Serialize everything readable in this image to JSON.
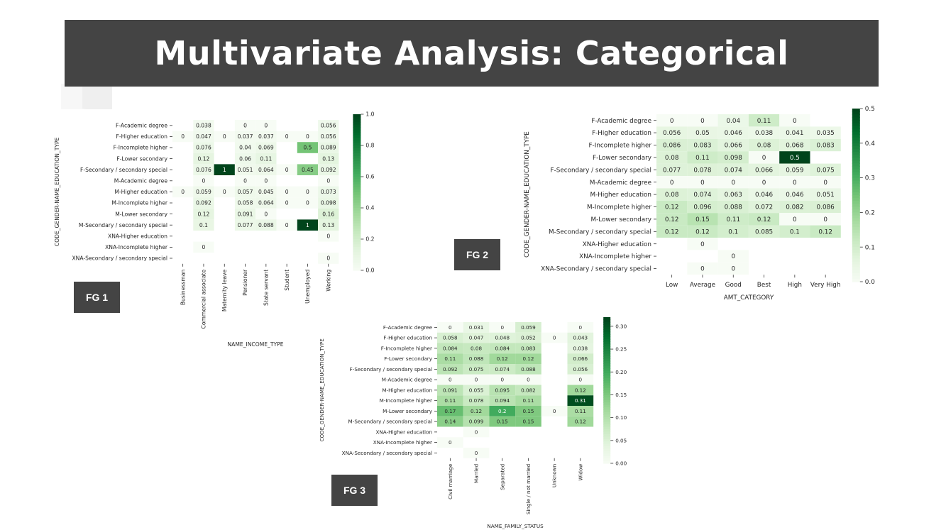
{
  "title": "Multivariate Analysis: Categorical",
  "figure_labels": [
    "FG 1",
    "FG 2",
    "FG 3"
  ],
  "colors": {
    "title_bg": "#444444",
    "cmap_light": "#f7fcf5",
    "cmap_dark": "#00441b"
  },
  "chart_data": [
    {
      "type": "heatmap",
      "ylabel": "CODE_GENDER-NAME_EDUCATION_TYPE",
      "xlabel": "NAME_INCOME_TYPE",
      "rows": [
        "F-Academic degree",
        "F-Higher education",
        "F-Incomplete higher",
        "F-Lower secondary",
        "F-Secondary / secondary special",
        "M-Academic degree",
        "M-Higher education",
        "M-Incomplete higher",
        "M-Lower secondary",
        "M-Secondary / secondary special",
        "XNA-Higher education",
        "XNA-Incomplete higher",
        "XNA-Secondary / secondary special"
      ],
      "columns": [
        "Businessman",
        "Commercial associate",
        "Maternity leave",
        "Pensioner",
        "State servant",
        "Student",
        "Unemployed",
        "Working"
      ],
      "values": [
        [
          null,
          "0.038",
          null,
          "0",
          "0",
          null,
          null,
          "0.056"
        ],
        [
          "0",
          "0.047",
          "0",
          "0.037",
          "0.037",
          "0",
          "0",
          "0.056"
        ],
        [
          null,
          "0.076",
          null,
          "0.04",
          "0.069",
          null,
          "0.5",
          "0.089"
        ],
        [
          null,
          "0.12",
          null,
          "0.06",
          "0.11",
          null,
          null,
          "0.13"
        ],
        [
          null,
          "0.076",
          "1",
          "0.051",
          "0.064",
          "0",
          "0.45",
          "0.092"
        ],
        [
          null,
          "0",
          null,
          "0",
          "0",
          null,
          null,
          "0"
        ],
        [
          "0",
          "0.059",
          "0",
          "0.057",
          "0.045",
          "0",
          "0",
          "0.073"
        ],
        [
          null,
          "0.092",
          null,
          "0.058",
          "0.064",
          "0",
          "0",
          "0.098"
        ],
        [
          null,
          "0.12",
          null,
          "0.091",
          "0",
          null,
          null,
          "0.16"
        ],
        [
          null,
          "0.1",
          null,
          "0.077",
          "0.088",
          "0",
          "1",
          "0.13"
        ],
        [
          null,
          null,
          null,
          null,
          null,
          null,
          null,
          "0"
        ],
        [
          null,
          "0",
          null,
          null,
          null,
          null,
          null,
          null
        ],
        [
          null,
          null,
          null,
          null,
          null,
          null,
          null,
          "0"
        ]
      ],
      "colorbar": {
        "min": 0,
        "max": 1.0,
        "ticks": [
          "0.0",
          "0.2",
          "0.4",
          "0.6",
          "0.8",
          "1.0"
        ]
      }
    },
    {
      "type": "heatmap",
      "ylabel": "CODE_GENDER-NAME_EDUCATION_TYPE",
      "xlabel": "AMT_CATEGORY",
      "rows": [
        "F-Academic degree",
        "F-Higher education",
        "F-Incomplete higher",
        "F-Lower secondary",
        "F-Secondary / secondary special",
        "M-Academic degree",
        "M-Higher education",
        "M-Incomplete higher",
        "M-Lower secondary",
        "M-Secondary / secondary special",
        "XNA-Higher education",
        "XNA-Incomplete higher",
        "XNA-Secondary / secondary special"
      ],
      "columns": [
        "Low",
        "Average",
        "Good",
        "Best",
        "High",
        "Very High"
      ],
      "values": [
        [
          "0",
          "0",
          "0.04",
          "0.11",
          "0",
          null
        ],
        [
          "0.056",
          "0.05",
          "0.046",
          "0.038",
          "0.041",
          "0.035"
        ],
        [
          "0.086",
          "0.083",
          "0.066",
          "0.08",
          "0.068",
          "0.083"
        ],
        [
          "0.08",
          "0.11",
          "0.098",
          "0",
          "0.5",
          null
        ],
        [
          "0.077",
          "0.078",
          "0.074",
          "0.066",
          "0.059",
          "0.075"
        ],
        [
          "0",
          "0",
          "0",
          "0",
          "0",
          "0"
        ],
        [
          "0.08",
          "0.074",
          "0.063",
          "0.046",
          "0.046",
          "0.051"
        ],
        [
          "0.12",
          "0.096",
          "0.088",
          "0.072",
          "0.082",
          "0.086"
        ],
        [
          "0.12",
          "0.15",
          "0.11",
          "0.12",
          "0",
          "0"
        ],
        [
          "0.12",
          "0.12",
          "0.1",
          "0.085",
          "0.1",
          "0.12"
        ],
        [
          null,
          "0",
          null,
          null,
          null,
          null
        ],
        [
          null,
          null,
          "0",
          null,
          null,
          null
        ],
        [
          null,
          "0",
          "0",
          null,
          null,
          null
        ]
      ],
      "colorbar": {
        "min": 0,
        "max": 0.5,
        "ticks": [
          "0.0",
          "0.1",
          "0.2",
          "0.3",
          "0.4",
          "0.5"
        ]
      }
    },
    {
      "type": "heatmap",
      "ylabel": "CODE_GENDER-NAME_EDUCATION_TYPE",
      "xlabel": "NAME_FAMILY_STATUS",
      "rows": [
        "F-Academic degree",
        "F-Higher education",
        "F-Incomplete higher",
        "F-Lower secondary",
        "F-Secondary / secondary special",
        "M-Academic degree",
        "M-Higher education",
        "M-Incomplete higher",
        "M-Lower secondary",
        "M-Secondary / secondary special",
        "XNA-Higher education",
        "XNA-Incomplete higher",
        "XNA-Secondary / secondary special"
      ],
      "columns": [
        "Civil marriage",
        "Married",
        "Separated",
        "Single / not married",
        "Unknown",
        "Widow"
      ],
      "values": [
        [
          "0",
          "0.031",
          "0",
          "0.059",
          null,
          "0"
        ],
        [
          "0.058",
          "0.047",
          "0.048",
          "0.052",
          "0",
          "0.043"
        ],
        [
          "0.084",
          "0.08",
          "0.084",
          "0.083",
          null,
          "0.038"
        ],
        [
          "0.11",
          "0.088",
          "0.12",
          "0.12",
          null,
          "0.066"
        ],
        [
          "0.092",
          "0.075",
          "0.074",
          "0.088",
          null,
          "0.056"
        ],
        [
          "0",
          "0",
          "0",
          "0",
          null,
          "0"
        ],
        [
          "0.091",
          "0.055",
          "0.095",
          "0.082",
          null,
          "0.12"
        ],
        [
          "0.11",
          "0.078",
          "0.094",
          "0.11",
          null,
          "0.31"
        ],
        [
          "0.17",
          "0.12",
          "0.2",
          "0.15",
          "0",
          "0.11"
        ],
        [
          "0.14",
          "0.099",
          "0.15",
          "0.15",
          null,
          "0.12"
        ],
        [
          null,
          "0",
          null,
          null,
          null,
          null
        ],
        [
          "0",
          null,
          null,
          null,
          null,
          null
        ],
        [
          null,
          "0",
          null,
          null,
          null,
          null
        ]
      ],
      "colorbar": {
        "min": 0,
        "max": 0.32,
        "ticks": [
          "0.00",
          "0.05",
          "0.10",
          "0.15",
          "0.20",
          "0.25",
          "0.30"
        ]
      }
    }
  ]
}
